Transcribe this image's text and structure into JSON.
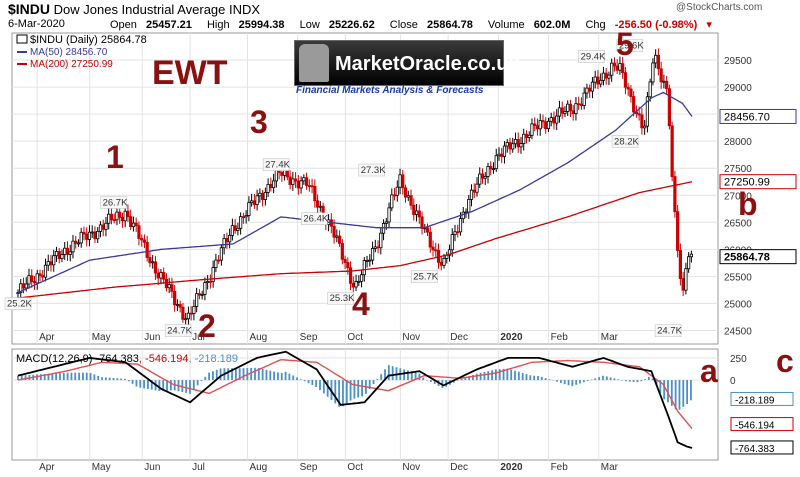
{
  "header": {
    "symbol": "$INDU",
    "name": "Dow Jones Industrial Average",
    "exchange": "INDX",
    "watermark": "@StockCharts.com",
    "date": "6-Mar-2020",
    "open_label": "Open",
    "open": "25457.21",
    "high_label": "High",
    "high": "25994.38",
    "low_label": "Low",
    "low": "25226.62",
    "close_label": "Close",
    "close": "25864.78",
    "volume_label": "Volume",
    "volume": "602.0M",
    "chg_label": "Chg",
    "chg": "-256.50 (-0.98%)"
  },
  "legend": {
    "main": "$INDU (Daily) 25864.78",
    "ma50": "MA(50) 28456.70",
    "ma200": "MA(200) 27250.99"
  },
  "logo": {
    "name": "MarketOracle.co.uk",
    "tagline": "Financial Markets Analysis & Forecasts"
  },
  "annotations": {
    "ewt": "EWT",
    "waves": [
      "1",
      "2",
      "3",
      "4",
      "5"
    ],
    "a": "a",
    "b": "b",
    "c": "c"
  },
  "colors": {
    "up": "#000000",
    "down": "#cc0000",
    "ma50": "#3a3a9a",
    "ma200": "#cc0000",
    "annot": "#8b1010",
    "hist": "#4a90c8"
  },
  "chart_data": [
    {
      "type": "candlestick",
      "title": "$INDU Dow Jones Industrial Average INDX",
      "x_ticks": [
        "Apr",
        "May",
        "Jun",
        "Jul",
        "Aug",
        "Sep",
        "Oct",
        "Nov",
        "Dec",
        "2020",
        "Feb",
        "Mar"
      ],
      "y_ticks": [
        "29500",
        "29000",
        "28500",
        "28000",
        "27500",
        "27000",
        "26500",
        "26000",
        "25500",
        "25000",
        "24500"
      ],
      "ylim": [
        24250,
        30000
      ],
      "y_right_labels": [
        "28456.70",
        "27250.99",
        "25864.78"
      ],
      "price_labels": [
        "25.2K",
        "26.7K",
        "24.7K",
        "27.4K",
        "26.4K",
        "25.3K",
        "27.3K",
        "25.7K",
        "29.4K",
        "29.6K",
        "28.2K",
        "24.7K"
      ],
      "close_path": {
        "x_day": [
          0,
          20,
          45,
          58,
          71,
          90,
          109,
          121,
          131,
          141,
          150,
          160,
          168,
          178,
          188,
          200,
          212,
          222,
          232,
          240,
          249,
          252,
          262,
          266,
          272,
          274,
          278,
          280,
          282
        ],
        "close": [
          25200,
          26000,
          26700,
          25600,
          24700,
          26400,
          27400,
          27200,
          26400,
          25300,
          26100,
          27300,
          26500,
          25700,
          26900,
          27700,
          28100,
          28400,
          28600,
          29000,
          29400,
          29300,
          28200,
          29600,
          28900,
          27000,
          25000,
          26000,
          25864
        ]
      },
      "ma50_path": {
        "x_day": [
          0,
          30,
          60,
          90,
          110,
          130,
          150,
          170,
          190,
          210,
          230,
          250,
          265,
          270,
          278,
          282
        ],
        "ma": [
          25200,
          25800,
          26000,
          26100,
          26600,
          26500,
          26400,
          26400,
          26700,
          27100,
          27600,
          28200,
          28800,
          28900,
          28700,
          28456.7
        ]
      },
      "ma200_path": {
        "x_day": [
          0,
          40,
          80,
          110,
          140,
          160,
          180,
          200,
          230,
          260,
          282
        ],
        "ma": [
          25100,
          25300,
          25450,
          25550,
          25600,
          25700,
          25900,
          26200,
          26600,
          27050,
          27250.99
        ]
      }
    },
    {
      "type": "line",
      "title": "MACD(12,26,9) -764.383, -546.194, -218.189",
      "label": "MACD(12,26,9)",
      "macd_value": "-764.383",
      "signal_value": "-546.194",
      "hist_value": "-218.189",
      "y_ticks": [
        "250",
        "0"
      ],
      "ylim": [
        -900,
        350
      ],
      "y_right_labels": [
        "-218.189",
        "-546.194",
        "-764.383"
      ],
      "x_ticks": [
        "Apr",
        "May",
        "Jun",
        "Jul",
        "Aug",
        "Sep",
        "Oct",
        "Nov",
        "Dec",
        "2020",
        "Feb",
        "Mar"
      ],
      "macd": {
        "x_day": [
          0,
          15,
          30,
          45,
          60,
          72,
          85,
          100,
          112,
          125,
          135,
          145,
          155,
          168,
          178,
          192,
          205,
          218,
          232,
          245,
          255,
          265,
          272,
          276,
          280,
          282
        ],
        "values": [
          50,
          150,
          250,
          200,
          -100,
          -250,
          50,
          250,
          320,
          120,
          -280,
          -250,
          50,
          100,
          -60,
          120,
          250,
          250,
          150,
          250,
          150,
          100,
          -400,
          -700,
          -750,
          -764.383
        ]
      },
      "signal": {
        "x_day": [
          0,
          20,
          35,
          50,
          65,
          80,
          95,
          110,
          125,
          140,
          155,
          170,
          185,
          200,
          215,
          230,
          245,
          260,
          270,
          276,
          282
        ],
        "values": [
          0,
          100,
          200,
          180,
          -50,
          -150,
          50,
          230,
          200,
          -50,
          -120,
          50,
          20,
          80,
          200,
          220,
          200,
          150,
          -50,
          -350,
          -546.194
        ]
      }
    }
  ]
}
